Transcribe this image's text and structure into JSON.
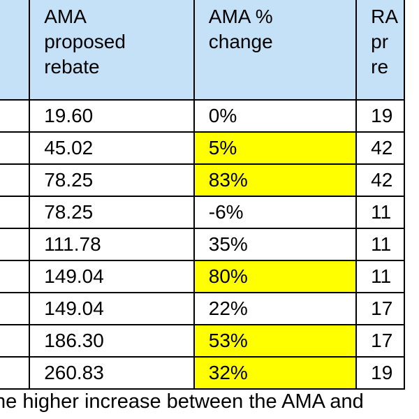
{
  "table": {
    "headers": [
      {
        "lines": [
          ""
        ]
      },
      {
        "lines": [
          "AMA",
          "proposed",
          "rebate"
        ]
      },
      {
        "lines": [
          "AMA %",
          "change"
        ]
      },
      {
        "lines": [
          "RA",
          "pr",
          "re"
        ]
      }
    ],
    "rows": [
      {
        "ama_rebate": "19.60",
        "ama_change": "0%",
        "ra": "19",
        "highlight": false
      },
      {
        "ama_rebate": "45.02",
        "ama_change": "5%",
        "ra": "42",
        "highlight": true
      },
      {
        "ama_rebate": "78.25",
        "ama_change": "83%",
        "ra": "42",
        "highlight": true
      },
      {
        "ama_rebate": "78.25",
        "ama_change": "-6%",
        "ra": "11",
        "highlight": false
      },
      {
        "ama_rebate": "111.78",
        "ama_change": "35%",
        "ra": "11",
        "highlight": false
      },
      {
        "ama_rebate": "149.04",
        "ama_change": "80%",
        "ra": "11",
        "highlight": true
      },
      {
        "ama_rebate": "149.04",
        "ama_change": "22%",
        "ra": "17",
        "highlight": false
      },
      {
        "ama_rebate": "186.30",
        "ama_change": "53%",
        "ra": "17",
        "highlight": true
      },
      {
        "ama_rebate": "260.83",
        "ama_change": "32%",
        "ra": "19",
        "highlight": true
      }
    ]
  },
  "caption": "he higher increase between the AMA and",
  "colors": {
    "header_bg": "#c5e1f7",
    "highlight": "#ffff00"
  }
}
